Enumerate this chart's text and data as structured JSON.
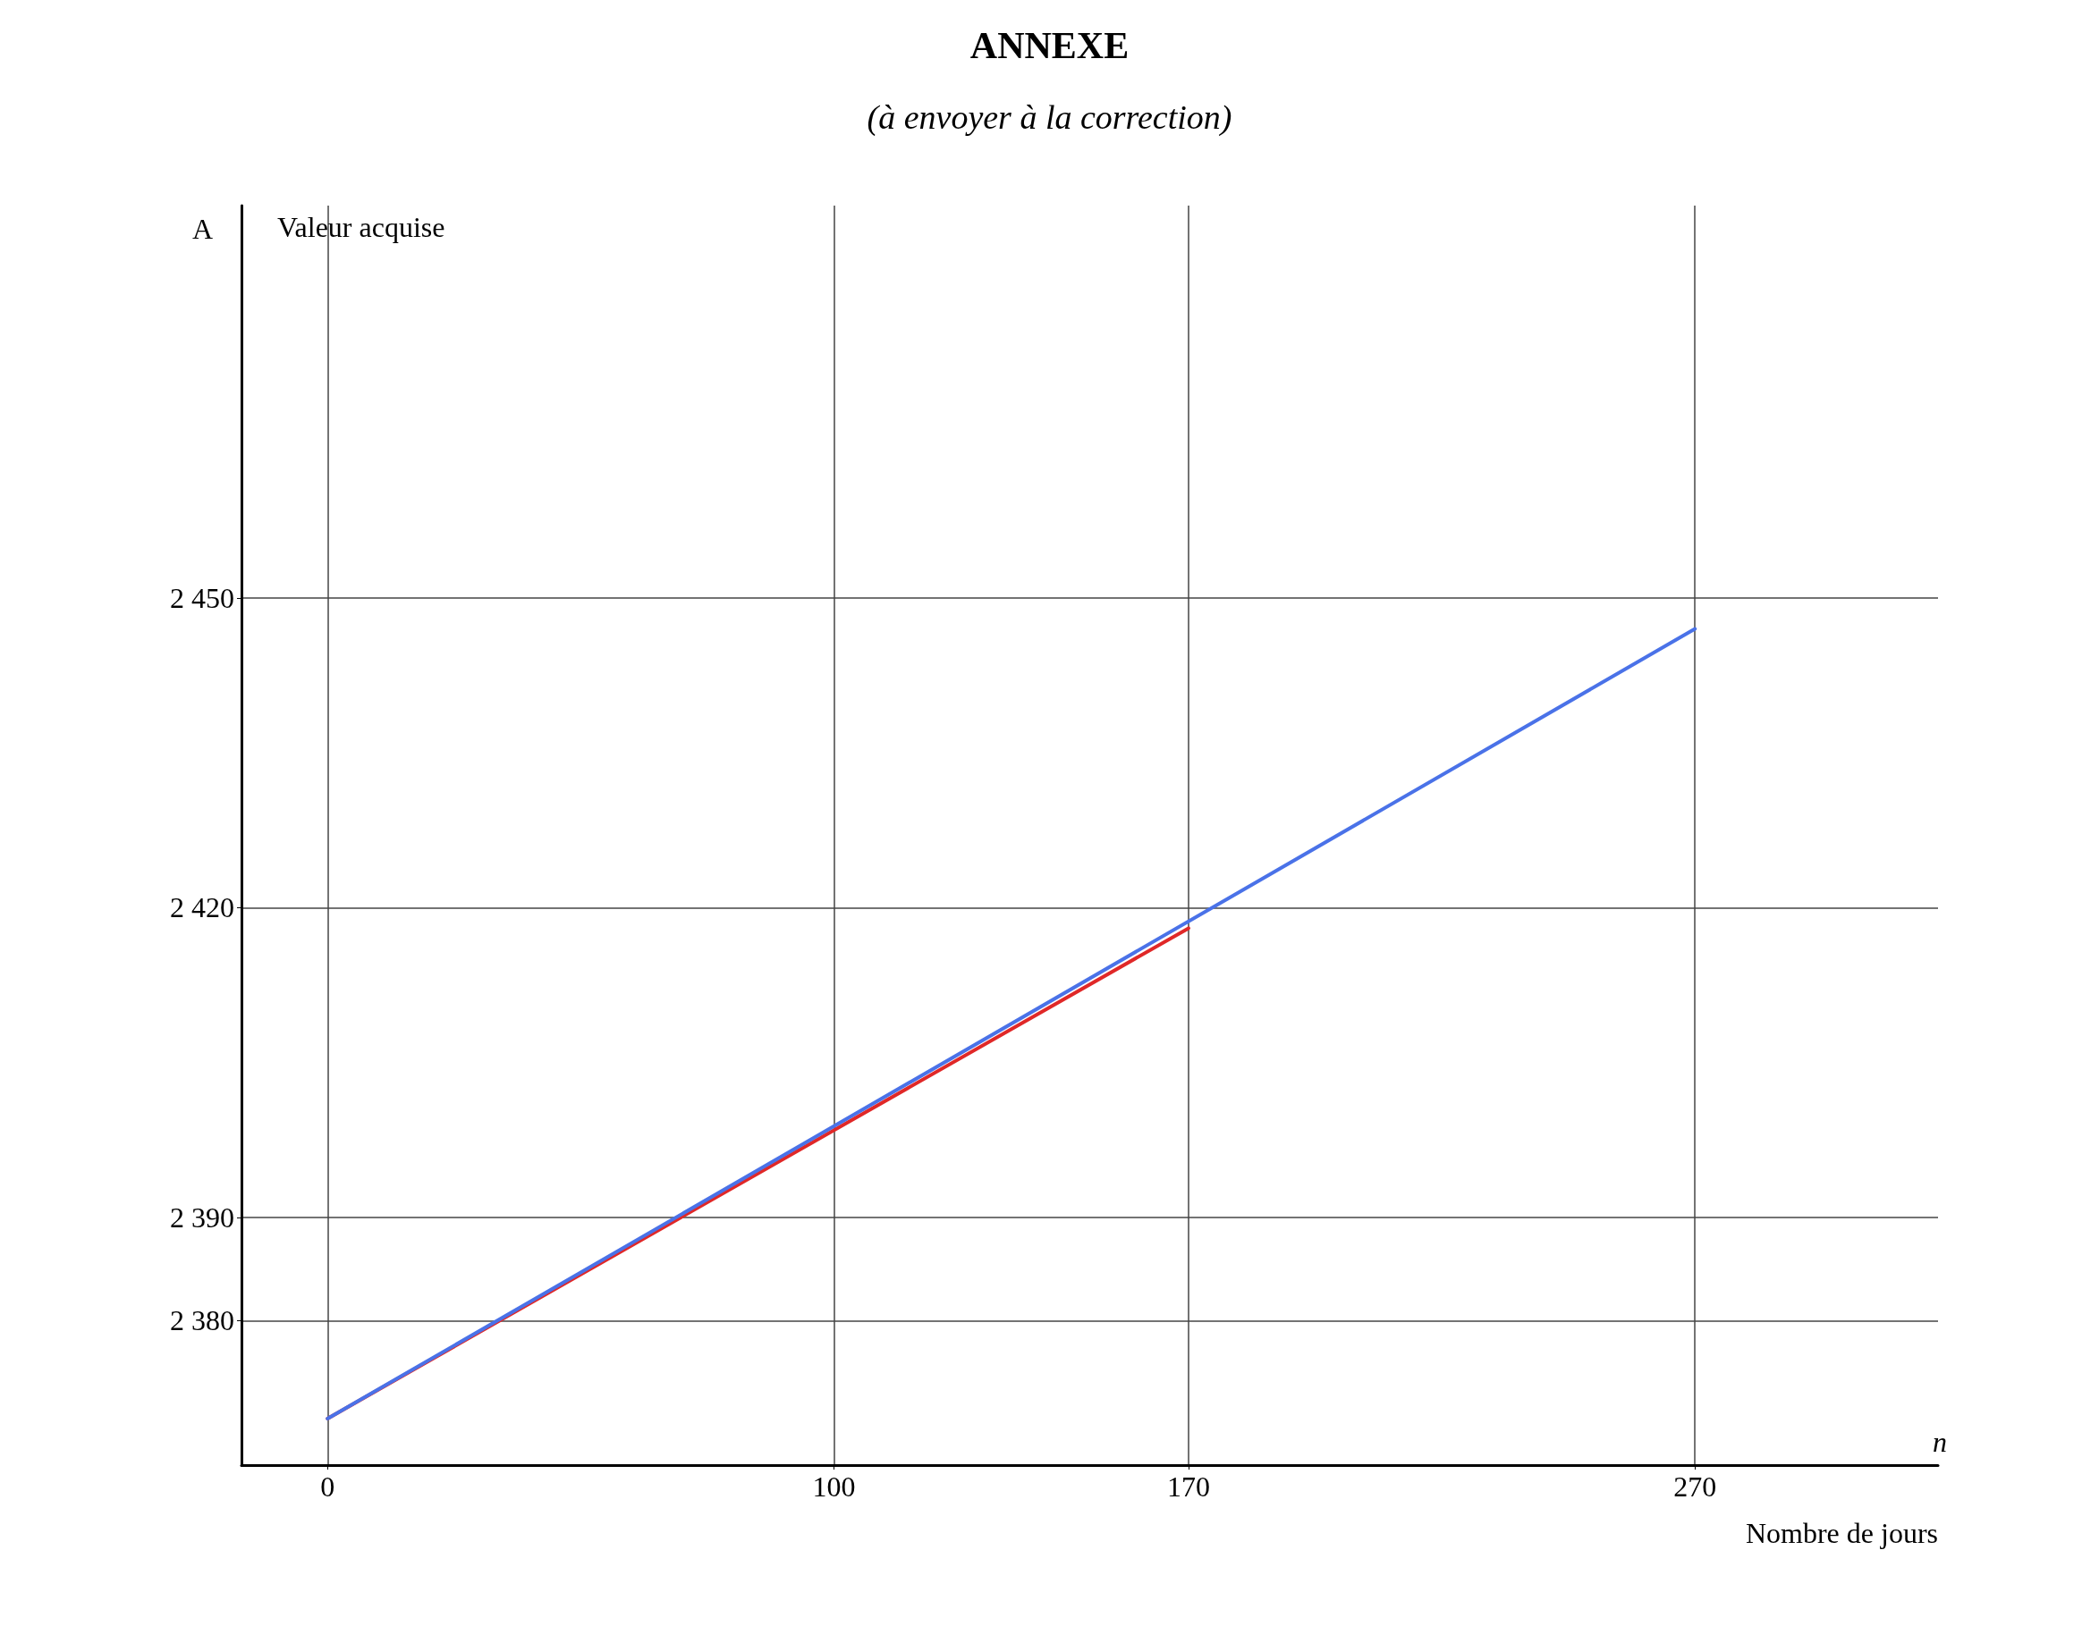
{
  "chart_data": {
    "type": "line",
    "title": "ANNEXE",
    "subtitle": "(à envoyer à la correction)",
    "xlabel": "Nombre de jours",
    "ylabel": "Valeur acquise",
    "annotations": [
      "A",
      "n"
    ],
    "series": [
      {
        "color": "#e02828",
        "x": [
          0,
          170
        ],
        "values": [
          2370.5,
          2418
        ]
      },
      {
        "color": "#4a72e8",
        "x": [
          0,
          270
        ],
        "values": [
          2370.5,
          2447
        ]
      }
    ],
    "xlim": [
      -17,
      318
    ],
    "xticks": [
      0,
      100,
      170,
      270
    ],
    "ylim": [
      2366,
      2488
    ],
    "yticks": [
      2380,
      2390,
      2420,
      2450
    ],
    "grid": true,
    "marker": "none",
    "line_style": "solid"
  }
}
